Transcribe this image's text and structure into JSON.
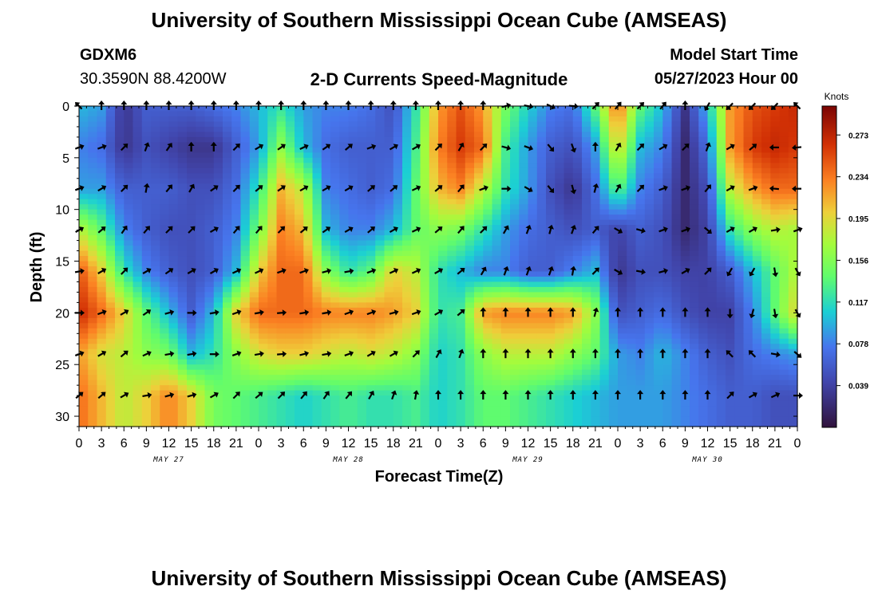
{
  "header": {
    "title": "University of Southern Mississippi Ocean Cube (AMSEAS)",
    "station_id": "GDXM6",
    "coords": "30.3590N  88.4200W",
    "subtitle": "2-D Currents Speed-Magnitude",
    "model_start_label": "Model Start Time",
    "model_start_value": "05/27/2023 Hour 00"
  },
  "footer": {
    "title": "University of Southern Mississippi Ocean Cube (AMSEAS)"
  },
  "chart_data": {
    "type": "heatmap",
    "title": "2-D Currents Speed-Magnitude",
    "xlabel": "Forecast Time(Z)",
    "ylabel": "Depth (ft)",
    "x_hours": [
      0,
      96
    ],
    "x_ticks": [
      "0",
      "3",
      "6",
      "9",
      "12",
      "15",
      "18",
      "21",
      "0",
      "3",
      "6",
      "9",
      "12",
      "15",
      "18",
      "21",
      "0",
      "3",
      "6",
      "9",
      "12",
      "15",
      "18",
      "21",
      "0",
      "3",
      "6",
      "9",
      "12",
      "15",
      "18",
      "21",
      "0"
    ],
    "date_labels": [
      {
        "label": "MAY 27",
        "hour": 12
      },
      {
        "label": "MAY 28",
        "hour": 36
      },
      {
        "label": "MAY 29",
        "hour": 60
      },
      {
        "label": "MAY 30",
        "hour": 84
      }
    ],
    "y_ticks": [
      "0",
      "5",
      "10",
      "15",
      "20",
      "25",
      "30"
    ],
    "ylim": [
      0,
      31
    ],
    "colorbar": {
      "unit": "Knots",
      "ticks": [
        "0.273",
        "0.234",
        "0.195",
        "0.156",
        "0.117",
        "0.078",
        "0.039"
      ],
      "range": [
        0,
        0.3
      ]
    },
    "depth_levels_ft": [
      0,
      4,
      8,
      12,
      16,
      20,
      24,
      28
    ],
    "time_hours": [
      0,
      3,
      6,
      9,
      12,
      15,
      18,
      21,
      24,
      27,
      30,
      33,
      36,
      39,
      42,
      45,
      48,
      51,
      54,
      57,
      60,
      63,
      66,
      69,
      72,
      75,
      78,
      81,
      84,
      87,
      90,
      93,
      96
    ],
    "speed_knots": [
      [
        0.1,
        0.09,
        0.03,
        0.06,
        0.06,
        0.06,
        0.07,
        0.08,
        0.1,
        0.12,
        0.09,
        0.08,
        0.08,
        0.07,
        0.05,
        0.12,
        0.22,
        0.25,
        0.22,
        0.15,
        0.11,
        0.08,
        0.07,
        0.14,
        0.24,
        0.14,
        0.1,
        0.03,
        0.1,
        0.22,
        0.25,
        0.26,
        0.27
      ],
      [
        0.08,
        0.07,
        0.03,
        0.05,
        0.04,
        0.03,
        0.03,
        0.06,
        0.09,
        0.16,
        0.1,
        0.07,
        0.06,
        0.06,
        0.06,
        0.13,
        0.23,
        0.26,
        0.24,
        0.13,
        0.09,
        0.06,
        0.05,
        0.09,
        0.2,
        0.1,
        0.08,
        0.02,
        0.07,
        0.22,
        0.26,
        0.27,
        0.26
      ],
      [
        0.09,
        0.09,
        0.06,
        0.06,
        0.06,
        0.05,
        0.05,
        0.07,
        0.12,
        0.21,
        0.18,
        0.08,
        0.07,
        0.06,
        0.07,
        0.14,
        0.21,
        0.23,
        0.18,
        0.12,
        0.09,
        0.05,
        0.03,
        0.07,
        0.14,
        0.08,
        0.06,
        0.02,
        0.05,
        0.18,
        0.22,
        0.24,
        0.24
      ],
      [
        0.18,
        0.14,
        0.08,
        0.06,
        0.05,
        0.05,
        0.06,
        0.08,
        0.15,
        0.23,
        0.21,
        0.1,
        0.08,
        0.08,
        0.1,
        0.14,
        0.16,
        0.15,
        0.12,
        0.09,
        0.07,
        0.06,
        0.05,
        0.06,
        0.04,
        0.06,
        0.05,
        0.02,
        0.04,
        0.12,
        0.16,
        0.18,
        0.17
      ],
      [
        0.25,
        0.2,
        0.12,
        0.08,
        0.06,
        0.05,
        0.06,
        0.1,
        0.2,
        0.24,
        0.24,
        0.16,
        0.12,
        0.14,
        0.2,
        0.18,
        0.12,
        0.1,
        0.08,
        0.08,
        0.06,
        0.06,
        0.08,
        0.1,
        0.03,
        0.05,
        0.05,
        0.04,
        0.04,
        0.06,
        0.1,
        0.14,
        0.18
      ],
      [
        0.27,
        0.24,
        0.2,
        0.14,
        0.1,
        0.06,
        0.1,
        0.2,
        0.24,
        0.24,
        0.24,
        0.23,
        0.23,
        0.23,
        0.22,
        0.2,
        0.12,
        0.13,
        0.22,
        0.23,
        0.23,
        0.23,
        0.22,
        0.16,
        0.05,
        0.06,
        0.07,
        0.05,
        0.04,
        0.04,
        0.08,
        0.14,
        0.2
      ],
      [
        0.22,
        0.19,
        0.18,
        0.16,
        0.15,
        0.1,
        0.12,
        0.16,
        0.19,
        0.2,
        0.2,
        0.19,
        0.18,
        0.19,
        0.18,
        0.16,
        0.11,
        0.12,
        0.16,
        0.18,
        0.18,
        0.18,
        0.16,
        0.14,
        0.09,
        0.08,
        0.1,
        0.08,
        0.06,
        0.05,
        0.07,
        0.08,
        0.09
      ],
      [
        0.24,
        0.21,
        0.18,
        0.2,
        0.23,
        0.2,
        0.15,
        0.14,
        0.13,
        0.12,
        0.11,
        0.12,
        0.13,
        0.12,
        0.12,
        0.13,
        0.11,
        0.12,
        0.14,
        0.14,
        0.13,
        0.12,
        0.11,
        0.1,
        0.09,
        0.09,
        0.09,
        0.08,
        0.07,
        0.06,
        0.06,
        0.05,
        0.05
      ]
    ],
    "direction_deg": [
      [
        315,
        0,
        0,
        0,
        0,
        0,
        0,
        0,
        0,
        0,
        0,
        0,
        0,
        0,
        0,
        0,
        0,
        0,
        0,
        75,
        100,
        115,
        95,
        45,
        40,
        45,
        40,
        0,
        210,
        225,
        225,
        225,
        315
      ],
      [
        70,
        70,
        45,
        20,
        35,
        0,
        0,
        45,
        60,
        55,
        65,
        55,
        50,
        70,
        60,
        60,
        45,
        30,
        45,
        105,
        110,
        140,
        160,
        0,
        30,
        45,
        60,
        45,
        20,
        60,
        50,
        270,
        265
      ],
      [
        70,
        60,
        45,
        10,
        40,
        30,
        55,
        45,
        50,
        55,
        60,
        60,
        60,
        50,
        50,
        65,
        50,
        40,
        70,
        90,
        120,
        140,
        165,
        15,
        30,
        45,
        70,
        70,
        40,
        60,
        70,
        275,
        270
      ],
      [
        60,
        50,
        35,
        40,
        45,
        45,
        60,
        40,
        40,
        45,
        50,
        55,
        60,
        50,
        60,
        65,
        50,
        40,
        45,
        30,
        20,
        15,
        20,
        40,
        120,
        105,
        70,
        70,
        130,
        60,
        60,
        80,
        70
      ],
      [
        80,
        60,
        45,
        60,
        55,
        60,
        60,
        65,
        65,
        70,
        70,
        75,
        80,
        70,
        65,
        65,
        60,
        50,
        30,
        20,
        20,
        20,
        10,
        45,
        120,
        100,
        75,
        60,
        45,
        210,
        210,
        170,
        150
      ],
      [
        90,
        70,
        60,
        55,
        75,
        90,
        80,
        70,
        80,
        85,
        80,
        80,
        70,
        70,
        75,
        70,
        60,
        50,
        0,
        0,
        0,
        0,
        0,
        15,
        0,
        0,
        0,
        0,
        0,
        180,
        195,
        170,
        150
      ],
      [
        70,
        60,
        50,
        65,
        80,
        80,
        90,
        70,
        80,
        85,
        75,
        80,
        70,
        60,
        60,
        45,
        30,
        20,
        0,
        0,
        0,
        0,
        0,
        0,
        0,
        0,
        0,
        0,
        0,
        315,
        315,
        100,
        130
      ],
      [
        50,
        50,
        60,
        80,
        75,
        75,
        60,
        45,
        50,
        45,
        40,
        35,
        40,
        30,
        20,
        10,
        0,
        0,
        0,
        0,
        0,
        0,
        0,
        0,
        0,
        0,
        0,
        0,
        0,
        45,
        60,
        65,
        90
      ]
    ]
  }
}
